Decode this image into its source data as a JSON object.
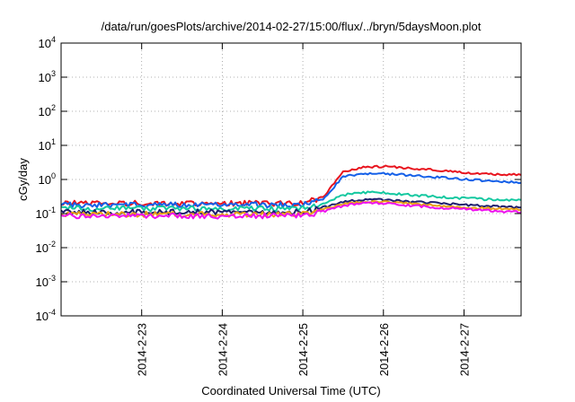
{
  "chart_data": {
    "type": "line",
    "title": "/data/run/goesPlots/archive/2014-02-27/15:00/flux/../bryn/5daysMoon.plot",
    "xlabel": "Coordinated Universal Time (UTC)",
    "ylabel": "cGy/day",
    "yscale": "log",
    "ylim": [
      0.0001,
      10000
    ],
    "y_ticks": [
      {
        "value": 0.0001,
        "base": "10",
        "exp": "-4"
      },
      {
        "value": 0.001,
        "base": "10",
        "exp": "-3"
      },
      {
        "value": 0.01,
        "base": "10",
        "exp": "-2"
      },
      {
        "value": 0.1,
        "base": "10",
        "exp": "-1"
      },
      {
        "value": 1,
        "base": "10",
        "exp": "0"
      },
      {
        "value": 10,
        "base": "10",
        "exp": "1"
      },
      {
        "value": 100,
        "base": "10",
        "exp": "2"
      },
      {
        "value": 1000,
        "base": "10",
        "exp": "3"
      },
      {
        "value": 10000,
        "base": "10",
        "exp": "4"
      }
    ],
    "xlim": [
      "2014-02-22 00:00",
      "2014-02-27 17:00"
    ],
    "x_ticks": [
      {
        "value": "2014-02-23 00:00",
        "label": "2014-2-23"
      },
      {
        "value": "2014-02-24 00:00",
        "label": "2014-2-24"
      },
      {
        "value": "2014-02-25 00:00",
        "label": "2014-2-25"
      },
      {
        "value": "2014-02-26 00:00",
        "label": "2014-2-26"
      },
      {
        "value": "2014-02-27 00:00",
        "label": "2014-2-27"
      }
    ],
    "grid": true,
    "legend": "none",
    "x": [
      "2014-02-22 00:00",
      "2014-02-22 12:00",
      "2014-02-23 00:00",
      "2014-02-23 12:00",
      "2014-02-24 00:00",
      "2014-02-24 12:00",
      "2014-02-25 00:00",
      "2014-02-25 06:00",
      "2014-02-25 12:00",
      "2014-02-25 18:00",
      "2014-02-26 00:00",
      "2014-02-26 12:00",
      "2014-02-27 00:00",
      "2014-02-27 12:00",
      "2014-02-27 17:00"
    ],
    "series": [
      {
        "color": "#e8141e",
        "values": [
          0.2,
          0.2,
          0.2,
          0.2,
          0.2,
          0.2,
          0.2,
          0.3,
          1.7,
          2.3,
          2.4,
          2.0,
          1.6,
          1.4,
          1.35
        ]
      },
      {
        "color": "#1560e8",
        "values": [
          0.18,
          0.18,
          0.18,
          0.18,
          0.18,
          0.18,
          0.18,
          0.27,
          1.2,
          1.5,
          1.5,
          1.25,
          1.0,
          0.85,
          0.8
        ]
      },
      {
        "color": "#14c8a0",
        "values": [
          0.14,
          0.14,
          0.14,
          0.14,
          0.14,
          0.14,
          0.14,
          0.19,
          0.35,
          0.42,
          0.4,
          0.33,
          0.28,
          0.25,
          0.25
        ]
      },
      {
        "color": "#1e1e6e",
        "values": [
          0.11,
          0.11,
          0.11,
          0.11,
          0.11,
          0.11,
          0.11,
          0.15,
          0.22,
          0.26,
          0.25,
          0.21,
          0.18,
          0.155,
          0.15
        ]
      },
      {
        "color": "#e8a014",
        "values": [
          0.095,
          0.095,
          0.095,
          0.095,
          0.095,
          0.095,
          0.095,
          0.13,
          0.19,
          0.22,
          0.22,
          0.18,
          0.15,
          0.135,
          0.13
        ]
      },
      {
        "color": "#ee10ee",
        "values": [
          0.085,
          0.085,
          0.085,
          0.085,
          0.085,
          0.085,
          0.085,
          0.115,
          0.17,
          0.2,
          0.2,
          0.16,
          0.135,
          0.115,
          0.11
        ]
      }
    ]
  }
}
